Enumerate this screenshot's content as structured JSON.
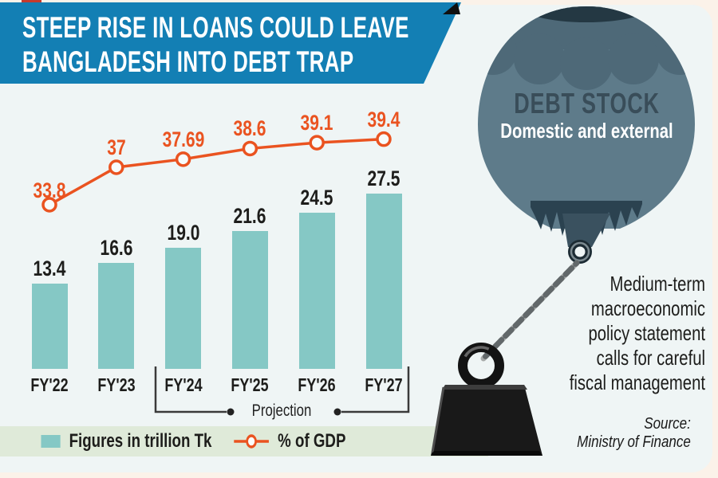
{
  "header": {
    "title_line1": "STEEP RISE IN LOANS COULD LEAVE",
    "title_line2": "BANGLADESH INTO DEBT TRAP"
  },
  "chart_data": {
    "type": "combo",
    "categories": [
      "FY'22",
      "FY'23",
      "FY'24",
      "FY'25",
      "FY'26",
      "FY'27"
    ],
    "series": [
      {
        "name": "Figures in trillion Tk",
        "type": "bar",
        "values": [
          13.4,
          16.6,
          19.0,
          21.6,
          24.5,
          27.5
        ],
        "labels": [
          "13.4",
          "16.6",
          "19.0",
          "21.6",
          "24.5",
          "27.5"
        ],
        "color": "#85c8c5"
      },
      {
        "name": "% of GDP",
        "type": "line",
        "values": [
          33.8,
          37,
          37.69,
          38.6,
          39.1,
          39.4
        ],
        "labels": [
          "33.8",
          "37",
          "37.69",
          "38.6",
          "39.1",
          "39.4"
        ],
        "color": "#ea5320"
      }
    ],
    "projection": {
      "label": "Projection",
      "categories": [
        "FY'24",
        "FY'25",
        "FY'26",
        "FY'27"
      ]
    },
    "axes": {
      "x_axis_visible": false,
      "y_axis_visible": false,
      "gridlines": false,
      "value_labels_on_points": true
    }
  },
  "legend": {
    "bar_label": "Figures in trillion Tk",
    "line_label": "% of GDP"
  },
  "balloon": {
    "title": "DEBT STOCK",
    "subtitle": "Domestic and external"
  },
  "annotation": {
    "text": "Medium-term macroeconomic policy statement calls for careful fiscal management"
  },
  "source": {
    "label": "Source:",
    "value": "Ministry of Finance"
  },
  "colors": {
    "banner_blue": "#137fb4",
    "accent_orange": "#ea5320",
    "bar_teal": "#85c8c5",
    "legend_band_green": "#dfead9",
    "panel_bg": "#eff5f5",
    "page_cream": "#fbf2e9",
    "balloon_body": "#5e7b8a",
    "balloon_top": "#4e6978",
    "balloon_dark": "#243843",
    "text_dark": "#1d1d1b",
    "debt_stock_text": "#394d59"
  }
}
